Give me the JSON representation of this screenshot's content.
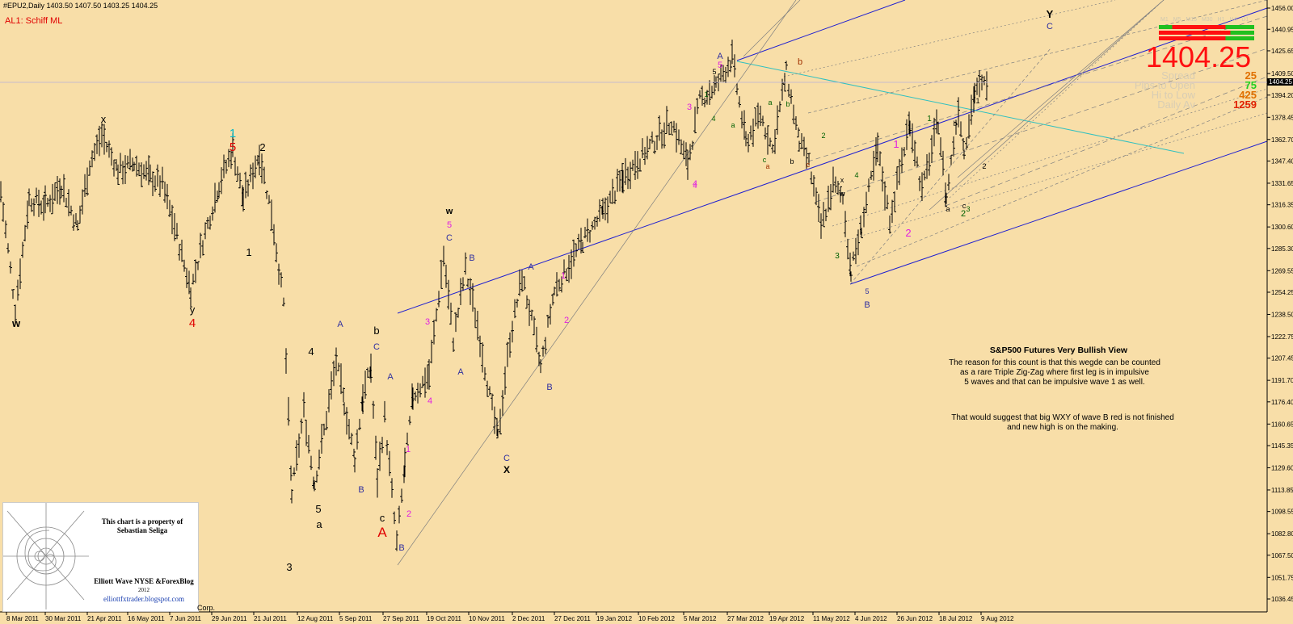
{
  "header": {
    "symbol_line": "#EPU2,Daily  1403.50 1407.50 1403.25 1404.25",
    "indicator": "AL1: Schiff ML"
  },
  "price_panel": {
    "last_price": "1404.25",
    "price_tag": "1404.25",
    "spread_label": "Spread",
    "spread_value": "25",
    "pips_label": "Pips to Open",
    "pips_value": "75",
    "hilo_label": "Hi to Low",
    "hilo_value": "425",
    "daily_label": "Daily Av",
    "daily_value": "1259",
    "timeframe_labels": [
      "M1",
      "M5",
      "M15",
      "M30",
      "H1",
      "H4",
      "D1"
    ],
    "colors": {
      "price": "#ff1010",
      "spread": "#e07000",
      "pips": "#20d020",
      "hilo": "#e07000",
      "daily": "#e02000"
    }
  },
  "annotation": {
    "title": "S&P500 Futures Very Bullish View",
    "line1": "The reason for this count is that this wegde can be counted",
    "line2": "as a rare Triple Zig-Zag where first leg is in impulsive",
    "line3": "5 waves and that can be impulsive wave 1 as well.",
    "line4": "That would suggest that big WXY of wave B red is not finished",
    "line5": "and new high is on the making."
  },
  "credit": {
    "owner_line1": "This chart is a property of",
    "owner_line2": "Sebastian Seliga",
    "blog_line1": "Elliott Wave NYSE &ForexBlog",
    "blog_line2": "2012",
    "url": "elliottfxtrader.blogspot.com",
    "corp": "Corp."
  },
  "chart_data": {
    "type": "bar",
    "title": "#EPU2,Daily",
    "ylim": [
      1036.45,
      1456.0
    ],
    "y_ticks": [
      "1456.00",
      "1440.95",
      "1425.65",
      "1409.50",
      "1394.20",
      "1378.45",
      "1362.70",
      "1347.40",
      "1331.65",
      "1316.35",
      "1300.60",
      "1285.30",
      "1269.55",
      "1254.25",
      "1238.50",
      "1222.75",
      "1207.45",
      "1191.70",
      "1176.40",
      "1160.65",
      "1145.35",
      "1129.60",
      "1113.85",
      "1098.55",
      "1082.80",
      "1067.50",
      "1051.75",
      "1036.45"
    ],
    "x_ticks": [
      "8 Mar 2011",
      "30 Mar 2011",
      "21 Apr 2011",
      "16 May 2011",
      "7 Jun 2011",
      "29 Jun 2011",
      "21 Jul 2011",
      "12 Aug 2011",
      "5 Sep 2011",
      "27 Sep 2011",
      "19 Oct 2011",
      "10 Nov 2011",
      "2 Dec 2011",
      "27 Dec 2011",
      "19 Jan 2012",
      "10 Feb 2012",
      "5 Mar 2012",
      "27 Mar 2012",
      "19 Apr 2012",
      "11 May 2012",
      "4 Jun 2012",
      "26 Jun 2012",
      "18 Jul 2012",
      "9 Aug 2012"
    ],
    "anchors": [
      [
        0,
        1325
      ],
      [
        18,
        1242
      ],
      [
        35,
        1320
      ],
      [
        55,
        1315
      ],
      [
        75,
        1330
      ],
      [
        95,
        1300
      ],
      [
        110,
        1345
      ],
      [
        125,
        1365
      ],
      [
        145,
        1340
      ],
      [
        165,
        1345
      ],
      [
        185,
        1335
      ],
      [
        200,
        1330
      ],
      [
        215,
        1300
      ],
      [
        235,
        1255
      ],
      [
        250,
        1290
      ],
      [
        270,
        1330
      ],
      [
        287,
        1355
      ],
      [
        300,
        1320
      ],
      [
        320,
        1352
      ],
      [
        335,
        1310
      ],
      [
        350,
        1245
      ],
      [
        360,
        1110
      ],
      [
        375,
        1170
      ],
      [
        388,
        1118
      ],
      [
        400,
        1155
      ],
      [
        415,
        1205
      ],
      [
        425,
        1175
      ],
      [
        438,
        1135
      ],
      [
        448,
        1180
      ],
      [
        458,
        1200
      ],
      [
        466,
        1120
      ],
      [
        475,
        1165
      ],
      [
        490,
        1075
      ],
      [
        500,
        1130
      ],
      [
        510,
        1180
      ],
      [
        530,
        1195
      ],
      [
        548,
        1280
      ],
      [
        560,
        1220
      ],
      [
        575,
        1270
      ],
      [
        590,
        1230
      ],
      [
        605,
        1180
      ],
      [
        615,
        1150
      ],
      [
        630,
        1220
      ],
      [
        645,
        1265
      ],
      [
        660,
        1225
      ],
      [
        668,
        1200
      ],
      [
        685,
        1255
      ],
      [
        700,
        1270
      ],
      [
        720,
        1290
      ],
      [
        745,
        1310
      ],
      [
        770,
        1335
      ],
      [
        800,
        1355
      ],
      [
        830,
        1375
      ],
      [
        850,
        1345
      ],
      [
        865,
        1390
      ],
      [
        885,
        1400
      ],
      [
        905,
        1420
      ],
      [
        922,
        1360
      ],
      [
        940,
        1380
      ],
      [
        955,
        1355
      ],
      [
        972,
        1410
      ],
      [
        988,
        1360
      ],
      [
        1000,
        1345
      ],
      [
        1015,
        1300
      ],
      [
        1030,
        1330
      ],
      [
        1042,
        1320
      ],
      [
        1052,
        1268
      ],
      [
        1065,
        1300
      ],
      [
        1085,
        1355
      ],
      [
        1100,
        1305
      ],
      [
        1125,
        1375
      ],
      [
        1140,
        1325
      ],
      [
        1160,
        1375
      ],
      [
        1170,
        1320
      ],
      [
        1185,
        1385
      ],
      [
        1192,
        1355
      ],
      [
        1205,
        1395
      ],
      [
        1222,
        1404.25
      ]
    ],
    "last": 1404.25
  },
  "wave_labels": [
    {
      "t": "w",
      "c": "#000"
    },
    {
      "t": "x",
      "c": "#000"
    },
    {
      "t": "y",
      "c": "#000"
    },
    {
      "t": "4",
      "c": "#e00000"
    },
    {
      "t": "1",
      "c": "#00b8c8"
    },
    {
      "t": "5",
      "c": "#e00000"
    },
    {
      "t": "2",
      "c": "#000"
    },
    {
      "t": "1",
      "c": "#000"
    },
    {
      "t": "3",
      "c": "#000"
    },
    {
      "t": "4",
      "c": "#000"
    },
    {
      "t": "5",
      "c": "#000"
    },
    {
      "t": "a",
      "c": "#000"
    },
    {
      "t": "A",
      "c": "#3030a0"
    },
    {
      "t": "B",
      "c": "#3030a0"
    },
    {
      "t": "b",
      "c": "#000"
    },
    {
      "t": "C",
      "c": "#3030a0"
    },
    {
      "t": "c",
      "c": "#000"
    },
    {
      "t": "A",
      "c": "#e00000"
    },
    {
      "t": "A",
      "c": "#3030a0"
    },
    {
      "t": "B",
      "c": "#3030a0"
    },
    {
      "t": "1",
      "c": "#e020e0"
    },
    {
      "t": "2",
      "c": "#e020e0"
    },
    {
      "t": "3",
      "c": "#e020e0"
    },
    {
      "t": "4",
      "c": "#e020e0"
    },
    {
      "t": "w",
      "c": "#000"
    },
    {
      "t": "5",
      "c": "#e020e0"
    },
    {
      "t": "C",
      "c": "#3030a0"
    },
    {
      "t": "B",
      "c": "#3030a0"
    },
    {
      "t": "A",
      "c": "#3030a0"
    },
    {
      "t": "C",
      "c": "#3030a0"
    },
    {
      "t": "X",
      "c": "#000"
    },
    {
      "t": "A",
      "c": "#3030a0"
    },
    {
      "t": "B",
      "c": "#3030a0"
    },
    {
      "t": "1",
      "c": "#e020e0"
    },
    {
      "t": "2",
      "c": "#e020e0"
    },
    {
      "t": "3",
      "c": "#e020e0"
    },
    {
      "t": "4",
      "c": "#e020e0"
    },
    {
      "t": "A",
      "c": "#3030a0"
    },
    {
      "t": "5",
      "c": "#e020e0"
    },
    {
      "t": "b",
      "c": "#a03000"
    },
    {
      "t": "Y",
      "c": "#000"
    },
    {
      "t": "C",
      "c": "#3030a0"
    },
    {
      "t": "1",
      "c": "#e020e0"
    },
    {
      "t": "2",
      "c": "#e020e0"
    },
    {
      "t": "5",
      "c": "#3030a0"
    },
    {
      "t": "B",
      "c": "#3030a0"
    },
    {
      "t": "1",
      "c": "#006000"
    },
    {
      "t": "2",
      "c": "#006000"
    },
    {
      "t": "a",
      "c": "#a03000"
    },
    {
      "t": "c",
      "c": "#a03000"
    },
    {
      "t": "b",
      "c": "#000"
    },
    {
      "t": "x",
      "c": "#000"
    },
    {
      "t": "w",
      "c": "#000"
    },
    {
      "t": "3",
      "c": "#006000"
    },
    {
      "t": "4",
      "c": "#006000"
    },
    {
      "t": "b",
      "c": "#000"
    },
    {
      "t": "c",
      "c": "#000"
    },
    {
      "t": "2",
      "c": "#000"
    },
    {
      "t": "1",
      "c": "#000"
    },
    {
      "t": "a",
      "c": "#000"
    },
    {
      "t": "3",
      "c": "#006000"
    },
    {
      "t": "2",
      "c": "#006000"
    },
    {
      "t": "a",
      "c": "#006000"
    },
    {
      "t": "4",
      "c": "#006000"
    },
    {
      "t": "1",
      "c": "#006000"
    },
    {
      "t": "4",
      "c": "#e020e0"
    },
    {
      "t": "5",
      "c": "#000"
    },
    {
      "t": "a",
      "c": "#006000"
    },
    {
      "t": "b",
      "c": "#006000"
    },
    {
      "t": "c",
      "c": "#006000"
    }
  ]
}
